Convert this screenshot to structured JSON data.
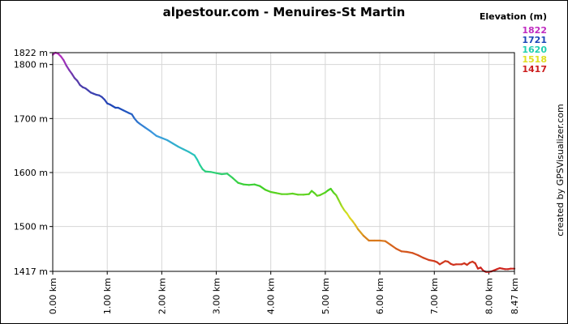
{
  "chart_data": {
    "type": "line",
    "title": "alpestour.com - Menuires-St Martin",
    "xlabel": "",
    "ylabel": "",
    "xlim": [
      0,
      8.47
    ],
    "ylim": [
      1417,
      1822
    ],
    "grid": true,
    "x_ticks": [
      0,
      1,
      2,
      3,
      4,
      5,
      6,
      7,
      8,
      8.47
    ],
    "x_tick_labels": [
      "0.00 km",
      "1.00 km",
      "2.00 km",
      "3.00 km",
      "4.00 km",
      "5.00 km",
      "6.00 km",
      "7.00 km",
      "8.00 km",
      "8.47 km"
    ],
    "y_ticks": [
      1417,
      1500,
      1600,
      1700,
      1800,
      1822
    ],
    "y_tick_labels": [
      "1417 m",
      "1500 m",
      "1600 m",
      "1700 m",
      "1800 m",
      "1822 m"
    ],
    "legend": {
      "title": "Elevation (m)",
      "placement": "top-right",
      "entries": [
        {
          "label": "1822",
          "color": "#c02cc0"
        },
        {
          "label": "1721",
          "color": "#1c47b8"
        },
        {
          "label": "1620",
          "color": "#22cfb0"
        },
        {
          "label": "1518",
          "color": "#e0e020"
        },
        {
          "label": "1417",
          "color": "#cc1e1e"
        }
      ]
    },
    "color_scale": [
      {
        "value": 1417,
        "color": "#cc1e1e"
      },
      {
        "value": 1470,
        "color": "#d8701c"
      },
      {
        "value": 1518,
        "color": "#e0e020"
      },
      {
        "value": 1570,
        "color": "#40d020"
      },
      {
        "value": 1620,
        "color": "#22cfb0"
      },
      {
        "value": 1670,
        "color": "#3c9ae0"
      },
      {
        "value": 1721,
        "color": "#1c47b8"
      },
      {
        "value": 1770,
        "color": "#5a3aa8"
      },
      {
        "value": 1822,
        "color": "#c02cc0"
      }
    ],
    "series": [
      {
        "x": [
          0,
          0.05,
          0.1,
          0.15,
          0.2,
          0.25,
          0.3,
          0.35,
          0.4,
          0.45,
          0.5,
          0.55,
          0.6,
          0.65,
          0.7,
          0.75,
          0.8,
          0.85,
          0.9,
          0.95,
          1.0,
          1.05,
          1.1,
          1.15,
          1.2,
          1.3,
          1.4,
          1.45,
          1.5,
          1.55,
          1.6,
          1.7,
          1.8,
          1.9,
          2.0,
          2.1,
          2.2,
          2.3,
          2.4,
          2.5,
          2.6,
          2.65,
          2.7,
          2.75,
          2.8,
          2.9,
          3.0,
          3.1,
          3.2,
          3.3,
          3.4,
          3.5,
          3.6,
          3.7,
          3.8,
          3.9,
          4.0,
          4.1,
          4.2,
          4.3,
          4.4,
          4.5,
          4.6,
          4.7,
          4.75,
          4.8,
          4.85,
          4.9,
          5.0,
          5.05,
          5.1,
          5.15,
          5.2,
          5.25,
          5.3,
          5.35,
          5.4,
          5.45,
          5.5,
          5.55,
          5.6,
          5.7,
          5.8,
          5.9,
          6.0,
          6.1,
          6.2,
          6.3,
          6.4,
          6.5,
          6.6,
          6.7,
          6.8,
          6.9,
          7.0,
          7.05,
          7.1,
          7.15,
          7.2,
          7.25,
          7.3,
          7.35,
          7.4,
          7.5,
          7.55,
          7.6,
          7.65,
          7.7,
          7.75,
          7.8,
          7.85,
          7.9,
          7.95,
          8.0,
          8.05,
          8.1,
          8.15,
          8.2,
          8.25,
          8.3,
          8.35,
          8.4,
          8.47
        ],
        "y": [
          1818,
          1822,
          1820,
          1815,
          1808,
          1798,
          1790,
          1783,
          1775,
          1770,
          1762,
          1758,
          1756,
          1752,
          1748,
          1746,
          1744,
          1743,
          1740,
          1735,
          1728,
          1726,
          1723,
          1720,
          1720,
          1715,
          1710,
          1708,
          1700,
          1694,
          1690,
          1683,
          1676,
          1668,
          1664,
          1660,
          1654,
          1648,
          1643,
          1638,
          1632,
          1624,
          1614,
          1606,
          1602,
          1601,
          1599,
          1597,
          1598,
          1590,
          1581,
          1578,
          1577,
          1578,
          1575,
          1568,
          1564,
          1562,
          1560,
          1560,
          1561,
          1559,
          1559,
          1560,
          1566,
          1562,
          1557,
          1558,
          1563,
          1567,
          1570,
          1563,
          1558,
          1548,
          1538,
          1530,
          1524,
          1516,
          1510,
          1503,
          1495,
          1483,
          1474,
          1474,
          1474,
          1473,
          1466,
          1459,
          1454,
          1453,
          1451,
          1447,
          1442,
          1438,
          1436,
          1434,
          1430,
          1433,
          1436,
          1435,
          1431,
          1429,
          1430,
          1430,
          1432,
          1429,
          1433,
          1435,
          1432,
          1422,
          1424,
          1418,
          1416,
          1416,
          1417,
          1419,
          1421,
          1423,
          1422,
          1421,
          1421,
          1422,
          1422
        ]
      }
    ]
  },
  "credit": "created by GPSVisualizer.com"
}
